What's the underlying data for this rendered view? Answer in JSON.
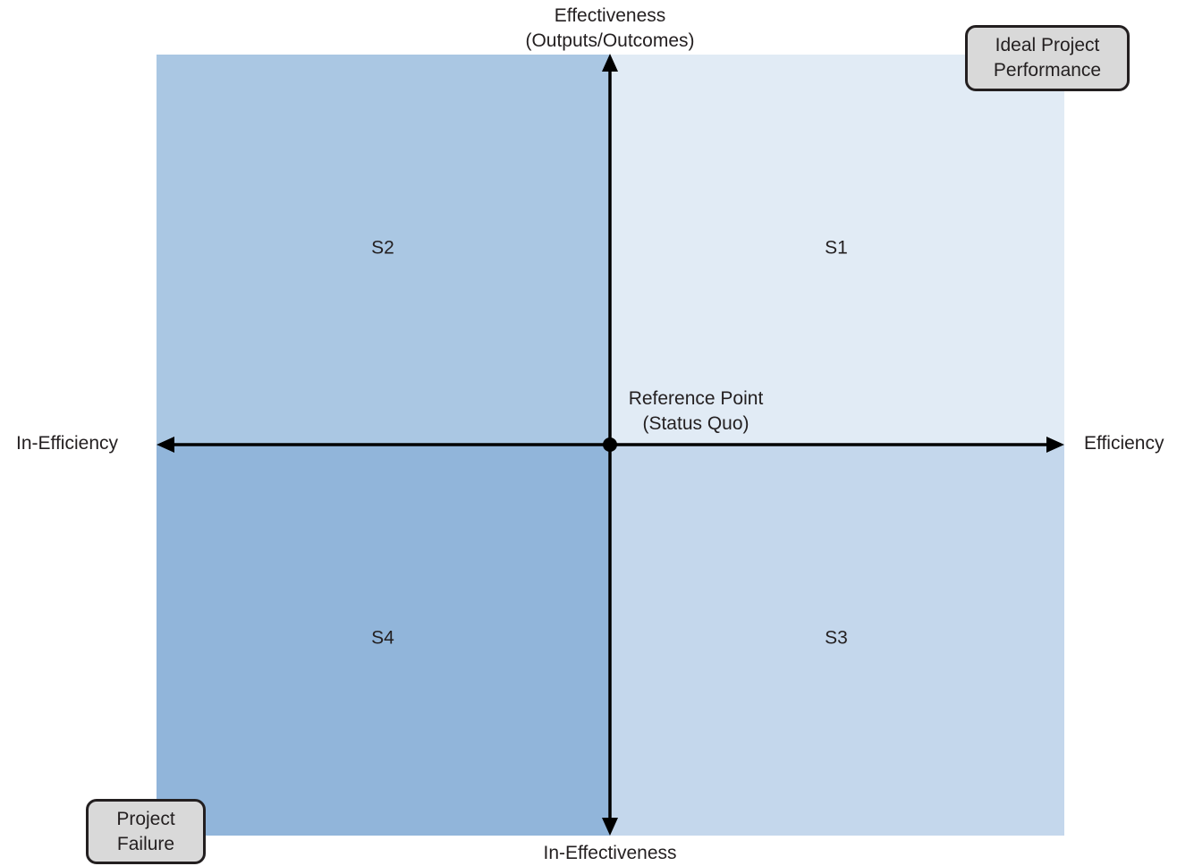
{
  "quadrants": {
    "s1": {
      "label": "S1",
      "color": "#e1ebf5"
    },
    "s2": {
      "label": "S2",
      "color": "#aac7e3"
    },
    "s3": {
      "label": "S3",
      "color": "#c4d7ec"
    },
    "s4": {
      "label": "S4",
      "color": "#91b5da"
    }
  },
  "axes": {
    "top_line1": "Effectiveness",
    "top_line2": "(Outputs/Outcomes)",
    "bottom": "In-Effectiveness",
    "left": "In-Efficiency",
    "right": "Efficiency",
    "color": "#000000"
  },
  "reference_point": {
    "line1": "Reference Point",
    "line2": "(Status Quo)"
  },
  "callouts": {
    "ideal_line1": "Ideal Project",
    "ideal_line2": "Performance",
    "failure_line1": "Project",
    "failure_line2": "Failure",
    "fill": "#d9d9d9"
  }
}
